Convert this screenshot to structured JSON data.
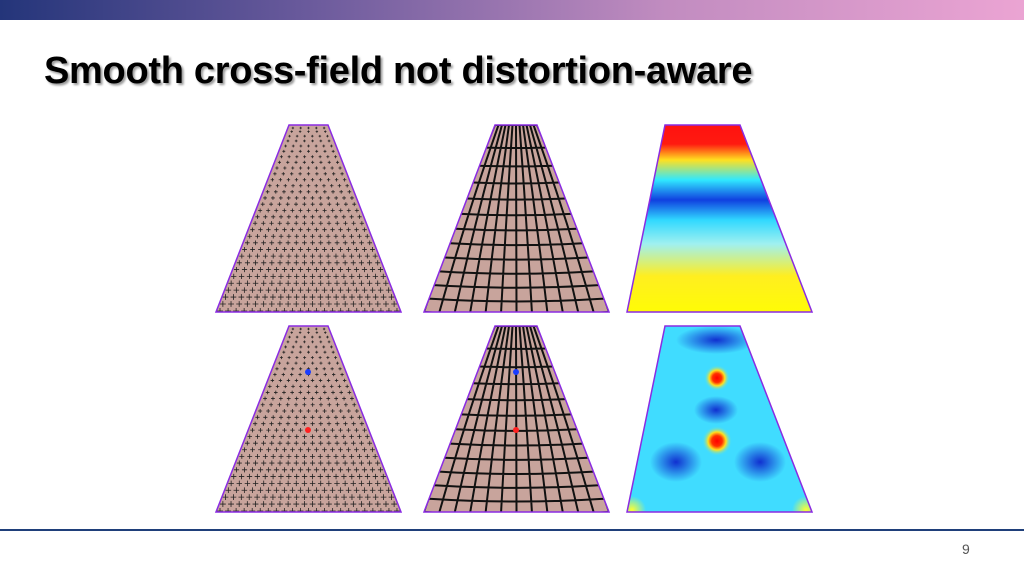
{
  "header": {
    "title": "Smooth cross-field not distortion-aware"
  },
  "footer": {
    "page_number": "9"
  }
}
